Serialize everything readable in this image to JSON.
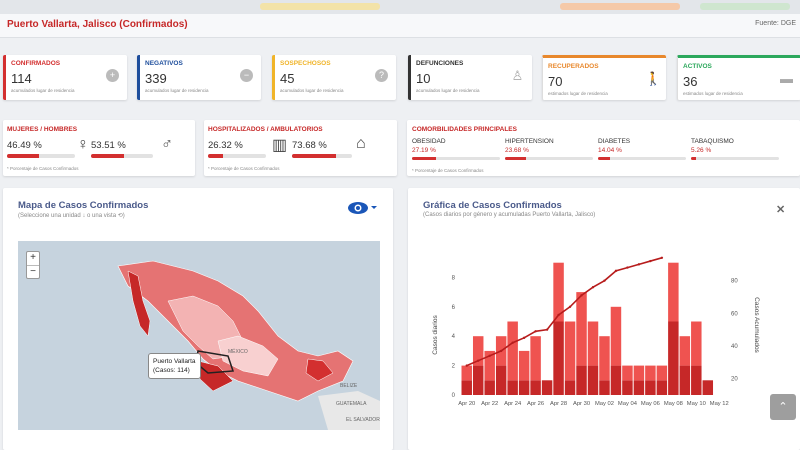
{
  "header": {
    "title": "Puerto Vallarta, Jalisco (Confirmados)",
    "source": "Fuente: DGE"
  },
  "kpis": [
    {
      "label": "CONFIRMADOS",
      "value": "114",
      "sub": "acumulados lugar de residencia",
      "color": "#d32f2f",
      "icon": "plus-circle-icon"
    },
    {
      "label": "NEGATIVOS",
      "value": "339",
      "sub": "acumulados lugar de residencia",
      "color": "#1e4e9c",
      "icon": "minus-circle-icon"
    },
    {
      "label": "SOSPECHOSOS",
      "value": "45",
      "sub": "acumulados lugar de residencia",
      "color": "#f0b429",
      "icon": "question-circle-icon"
    },
    {
      "label": "DEFUNCIONES",
      "value": "10",
      "sub": "acumulados lugar de residencia",
      "color": "#333333",
      "icon": "person-icon"
    },
    {
      "label": "RECUPERADOS",
      "value": "70",
      "sub": "estimados lugar de residencia",
      "color": "#e8882c",
      "icon": "walking-icon"
    },
    {
      "label": "ACTIVOS",
      "value": "36",
      "sub": "estimados lugar de residencia",
      "color": "#2ca85c",
      "icon": "bed-icon"
    }
  ],
  "gender": {
    "label": "MUJERES / HOMBRES",
    "women_pct": "46.49 %",
    "men_pct": "53.51 %",
    "women_frac": 0.4649,
    "men_frac": 0.5351
  },
  "hospital": {
    "label": "HOSPITALIZADOS / AMBULATORIOS",
    "hosp_pct": "26.32 %",
    "amb_pct": "73.68 %",
    "hosp_frac": 0.2632,
    "amb_frac": 0.7368,
    "note": "* Porcentaje de Casos Confirmados"
  },
  "gender_note": "* Porcentaje de Casos Confirmados",
  "comorb": {
    "label": "COMORBILIDADES PRINCIPALES",
    "items": [
      {
        "name": "OBESIDAD",
        "pct": "27.19 %",
        "frac": 0.2719
      },
      {
        "name": "HIPERTENSION",
        "pct": "23.68 %",
        "frac": 0.2368
      },
      {
        "name": "DIABETES",
        "pct": "14.04 %",
        "frac": 0.1404
      },
      {
        "name": "TABAQUISMO",
        "pct": "5.26 %",
        "frac": 0.0526
      }
    ],
    "note": "* Porcentaje de Casos Confirmados"
  },
  "map_panel": {
    "title": "Mapa de Casos Confirmados",
    "subtitle": "(Seleccione una unidad ↓ o una vista ⟲)",
    "tooltip_line1": "Puerto Vallarta",
    "tooltip_line2": "(Casos: 114)",
    "labels": {
      "mexico": "MÉXICO",
      "belize": "BELIZE",
      "guatemala": "GUATEMALA",
      "salvador": "EL SALVADOR"
    }
  },
  "chart_panel": {
    "title": "Gráfica de Casos Confirmados",
    "subtitle": "(Casos diarios por género y acumuladas Puerto Vallarta, Jalisco)"
  },
  "chart_data": {
    "type": "bar",
    "categories": [
      "Apr 20",
      "Apr 21",
      "Apr 22",
      "Apr 23",
      "Apr 24",
      "Apr 25",
      "Apr 26",
      "Apr 27",
      "Apr 28",
      "Apr 29",
      "Apr 30",
      "May 01",
      "May 02",
      "May 03",
      "May 04",
      "May 05",
      "May 06",
      "May 07",
      "May 08",
      "May 09",
      "May 10",
      "May 11",
      "May 12"
    ],
    "tick_labels": [
      "Apr 20",
      "Apr 22",
      "Apr 24",
      "Apr 26",
      "Apr 28",
      "Apr 30",
      "May 02",
      "May 04",
      "May 06",
      "May 08",
      "May 10",
      "May 12"
    ],
    "series": [
      {
        "values": [
          1,
          2,
          1,
          2,
          1,
          1,
          1,
          1,
          5,
          1,
          2,
          2,
          1,
          2,
          1,
          1,
          1,
          1,
          5,
          2,
          2,
          1,
          0
        ]
      },
      {
        "values": [
          1,
          2,
          2,
          2,
          4,
          2,
          3,
          0,
          4,
          4,
          5,
          3,
          3,
          4,
          1,
          1,
          1,
          1,
          4,
          2,
          3,
          0,
          0
        ]
      }
    ],
    "cumulative": [
      28,
      31,
      34,
      37,
      42,
      45,
      49,
      50,
      59,
      64,
      71,
      76,
      80,
      86,
      88,
      90,
      92,
      94,
      null,
      null,
      null,
      null,
      null
    ],
    "ylabel": "Casos diarios",
    "y2label": "Casos Acumulados",
    "ylim": [
      0,
      10
    ],
    "y2lim": [
      10,
      100
    ],
    "yticks": [
      0,
      2,
      4,
      6,
      8
    ],
    "y2ticks": [
      20,
      40,
      60,
      80
    ],
    "colors": {
      "light": "#ef5350",
      "dark": "#c62828",
      "line": "#b71c1c"
    }
  }
}
